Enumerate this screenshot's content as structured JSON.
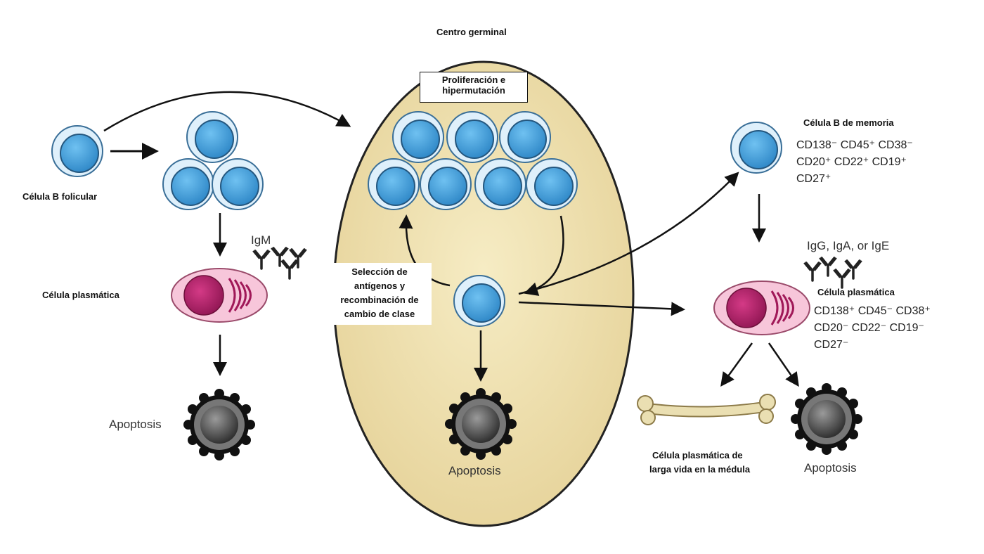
{
  "germinal_center": {
    "title": "Centro germinal",
    "proliferation_line1": "Proliferación e",
    "proliferation_line2": "hipermutación",
    "selection_line1": "Selección de",
    "selection_line2": "antígenos y",
    "selection_line3": "recombinación de",
    "selection_line4": "cambio de clase",
    "apoptosis": "Apoptosis"
  },
  "left": {
    "follicular_b": "Célula B folicular",
    "plasma_cell": "Célula plasmática",
    "antibody": "IgM",
    "apoptosis": "Apoptosis"
  },
  "right": {
    "memory_title": "Célula B de memoria",
    "memory_m1": "CD138⁻ CD45⁺ CD38⁻",
    "memory_m2": "CD20⁺ CD22⁺ CD19⁺",
    "memory_m3": "CD27⁺",
    "antibodies": "IgG, IgA, or IgE",
    "plasma_title": "Célula  plasmática",
    "plasma_m1": "CD138⁺ CD45⁻ CD38⁺",
    "plasma_m2": "CD20⁻ CD22⁻ CD19⁻",
    "plasma_m3": "CD27⁻",
    "longlived_line1": "Célula  plasmática de",
    "longlived_line2": "larga vida en la médula",
    "apoptosis": "Apoptosis"
  },
  "colors": {
    "gc_fill": "#efe1ad",
    "cell_outer": "#d6ecfa",
    "cell_inner": "#3e9cd8",
    "plasma_fill": "#f5bfd6",
    "nucleus": "#b5206a",
    "apoptotic": "#444444",
    "bone": "#e8dcae"
  }
}
